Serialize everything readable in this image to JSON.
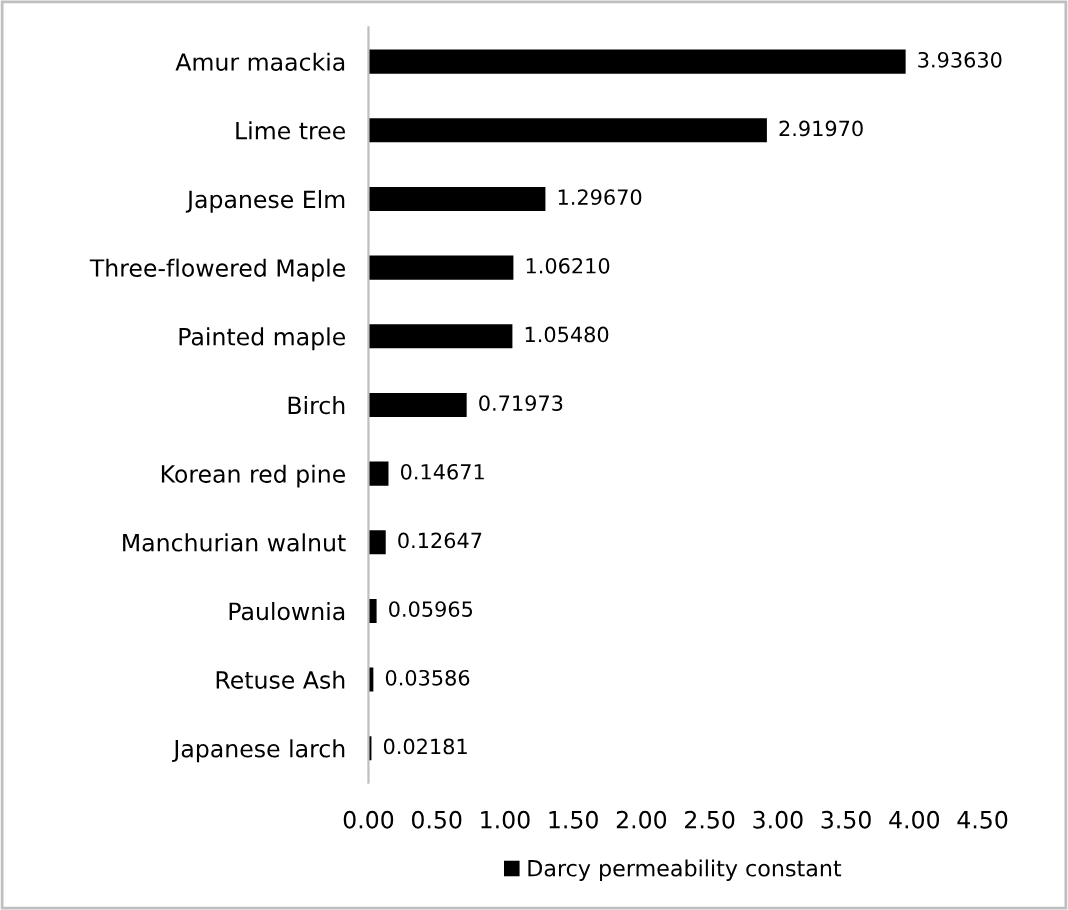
{
  "chart_data": {
    "type": "bar",
    "orientation": "horizontal",
    "categories": [
      "Amur maackia",
      "Lime tree",
      "Japanese Elm",
      "Three-flowered Maple",
      "Painted maple",
      "Birch",
      "Korean red pine",
      "Manchurian walnut",
      "Paulownia",
      "Retuse Ash",
      "Japanese larch"
    ],
    "series": [
      {
        "name": "Darcy permeability constant",
        "color": "#000000",
        "values": [
          3.9363,
          2.9197,
          1.2967,
          1.0621,
          1.0548,
          0.71973,
          0.14671,
          0.12647,
          0.05965,
          0.03586,
          0.02181
        ],
        "value_labels": [
          "3.93630",
          "2.91970",
          "1.29670",
          "1.06210",
          "1.05480",
          "0.71973",
          "0.14671",
          "0.12647",
          "0.05965",
          "0.03586",
          "0.02181"
        ]
      }
    ],
    "xlim": [
      0,
      4.5
    ],
    "xticks": [
      {
        "value": 0,
        "label": "0.00"
      },
      {
        "value": 0.5,
        "label": "0.50"
      },
      {
        "value": 1,
        "label": "1.00"
      },
      {
        "value": 1.5,
        "label": "1.50"
      },
      {
        "value": 2,
        "label": "2.00"
      },
      {
        "value": 2.5,
        "label": "2.50"
      },
      {
        "value": 3,
        "label": "3.00"
      },
      {
        "value": 3.5,
        "label": "3.50"
      },
      {
        "value": 4,
        "label": "4.00"
      },
      {
        "value": 4.5,
        "label": "4.50"
      }
    ],
    "grid": false,
    "legend": "bottom"
  }
}
